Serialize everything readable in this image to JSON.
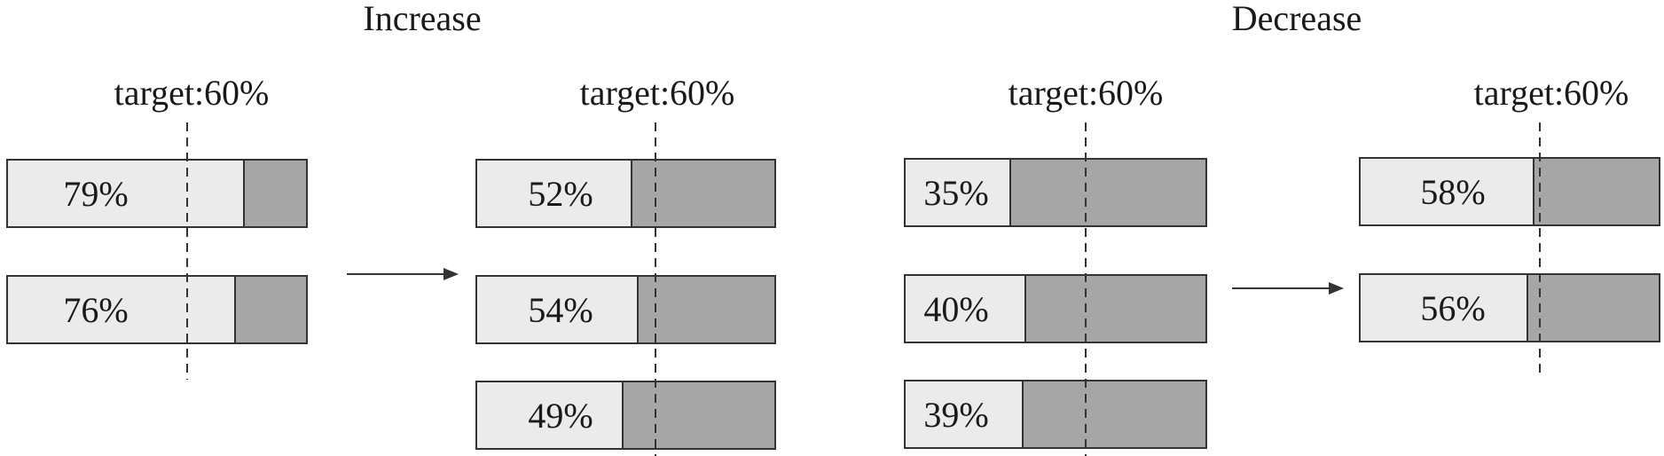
{
  "colors": {
    "filled": "#ebebeb",
    "remainder": "#a6a6a6",
    "stroke": "#333333",
    "text": "#1a1a1a"
  },
  "sections": [
    {
      "title": "Increase",
      "groups": [
        {
          "target_label": "target:60%",
          "target": 0.6,
          "bars": [
            {
              "label": "79%",
              "value": 0.79
            },
            {
              "label": "76%",
              "value": 0.76
            }
          ]
        },
        {
          "target_label": "target:60%",
          "target": 0.6,
          "bars": [
            {
              "label": "52%",
              "value": 0.52
            },
            {
              "label": "54%",
              "value": 0.54
            },
            {
              "label": "49%",
              "value": 0.49
            }
          ]
        }
      ]
    },
    {
      "title": "Decrease",
      "groups": [
        {
          "target_label": "target:60%",
          "target": 0.6,
          "bars": [
            {
              "label": "35%",
              "value": 0.35
            },
            {
              "label": "40%",
              "value": 0.4
            },
            {
              "label": "39%",
              "value": 0.39
            }
          ]
        },
        {
          "target_label": "target:60%",
          "target": 0.6,
          "bars": [
            {
              "label": "58%",
              "value": 0.58
            },
            {
              "label": "56%",
              "value": 0.56
            }
          ]
        }
      ]
    }
  ]
}
